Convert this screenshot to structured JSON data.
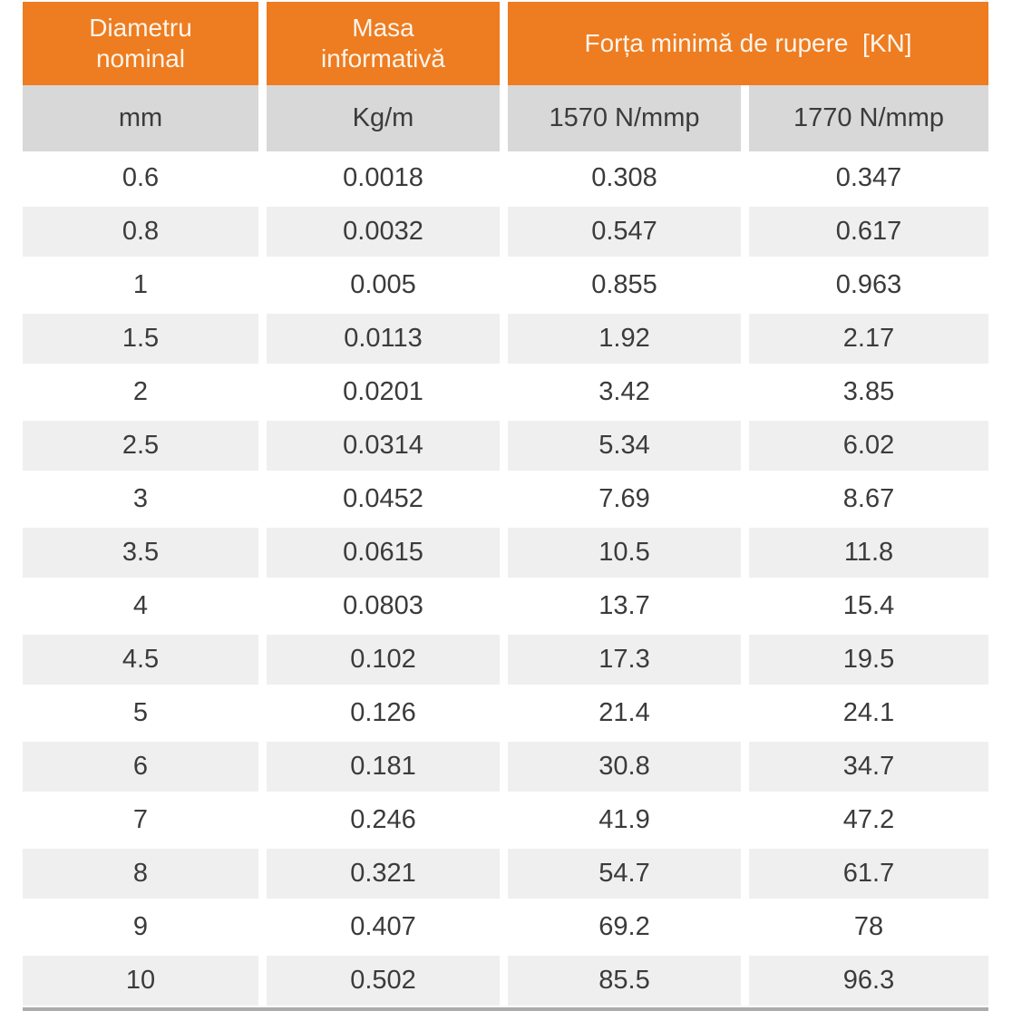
{
  "chart_data": {
    "type": "table",
    "headers": {
      "col1": "Diametru\nnominal",
      "col2": "Masa\ninformativă",
      "col34": "Forța minimă de rupere  [KN]"
    },
    "units": [
      "mm",
      "Kg/m",
      "1570 N/mmp",
      "1770 N/mmp"
    ],
    "rows": [
      [
        "0.6",
        "0.0018",
        "0.308",
        "0.347"
      ],
      [
        "0.8",
        "0.0032",
        "0.547",
        "0.617"
      ],
      [
        "1",
        "0.005",
        "0.855",
        "0.963"
      ],
      [
        "1.5",
        "0.0113",
        "1.92",
        "2.17"
      ],
      [
        "2",
        "0.0201",
        "3.42",
        "3.85"
      ],
      [
        "2.5",
        "0.0314",
        "5.34",
        "6.02"
      ],
      [
        "3",
        "0.0452",
        "7.69",
        "8.67"
      ],
      [
        "3.5",
        "0.0615",
        "10.5",
        "11.8"
      ],
      [
        "4",
        "0.0803",
        "13.7",
        "15.4"
      ],
      [
        "4.5",
        "0.102",
        "17.3",
        "19.5"
      ],
      [
        "5",
        "0.126",
        "21.4",
        "24.1"
      ],
      [
        "6",
        "0.181",
        "30.8",
        "34.7"
      ],
      [
        "7",
        "0.246",
        "41.9",
        "47.2"
      ],
      [
        "8",
        "0.321",
        "54.7",
        "61.7"
      ],
      [
        "9",
        "0.407",
        "69.2",
        "78"
      ],
      [
        "10",
        "0.502",
        "85.5",
        "96.3"
      ]
    ],
    "layout_hints": {
      "row_striping": "alternating white and light gray",
      "header_span": "Forța minimă de rupere [KN] spans the two rightmost columns"
    },
    "colors": {
      "header_orange": "#EE7C20",
      "header_text": "#FCF5EC",
      "subheader_gray": "#D8D8D8",
      "stripe_gray": "#EFEFEF",
      "text_dark": "#3B3B3B",
      "bottom_edge": "#ACACAC"
    }
  }
}
